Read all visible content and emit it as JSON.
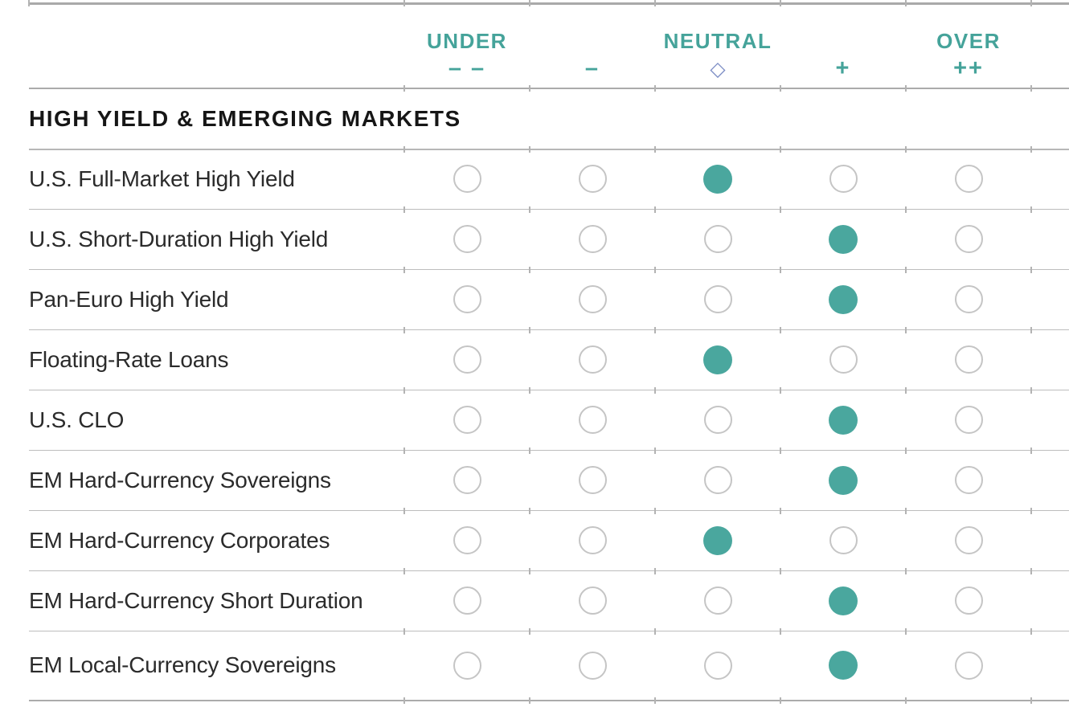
{
  "document": {
    "section_title": "HIGH YIELD & EMERGING MARKETS"
  },
  "scale_header": {
    "groups": [
      {
        "label": "UNDER",
        "column_index": 0
      },
      {
        "label": "NEUTRAL",
        "column_index": 2
      },
      {
        "label": "OVER",
        "column_index": 4
      }
    ],
    "symbols": [
      "– –",
      "–",
      "◇",
      "+",
      "++"
    ]
  },
  "rows": [
    {
      "label": "U.S. Full-Market High Yield",
      "selected_index": 2,
      "rating_symbol": "◇"
    },
    {
      "label": "U.S. Short-Duration High Yield",
      "selected_index": 3,
      "rating_symbol": "+"
    },
    {
      "label": "Pan-Euro High Yield",
      "selected_index": 3,
      "rating_symbol": "+"
    },
    {
      "label": "Floating-Rate Loans",
      "selected_index": 2,
      "rating_symbol": "◇"
    },
    {
      "label": "U.S. CLO",
      "selected_index": 3,
      "rating_symbol": "+"
    },
    {
      "label": "EM Hard-Currency Sovereigns",
      "selected_index": 3,
      "rating_symbol": "+"
    },
    {
      "label": "EM Hard-Currency Corporates",
      "selected_index": 2,
      "rating_symbol": "◇"
    },
    {
      "label": "EM Hard-Currency Short Duration",
      "selected_index": 3,
      "rating_symbol": "+"
    },
    {
      "label": "EM Local-Currency Sovereigns",
      "selected_index": 3,
      "rating_symbol": "+"
    }
  ],
  "colors": {
    "teal_accent": "#45a39a",
    "filled_dot": "#4aa79e",
    "neutral_diamond": "#7b8cc4",
    "circle_outline": "#c5c5c5",
    "grid_line": "#bdbdbd",
    "label_text": "#2b2b2b"
  }
}
